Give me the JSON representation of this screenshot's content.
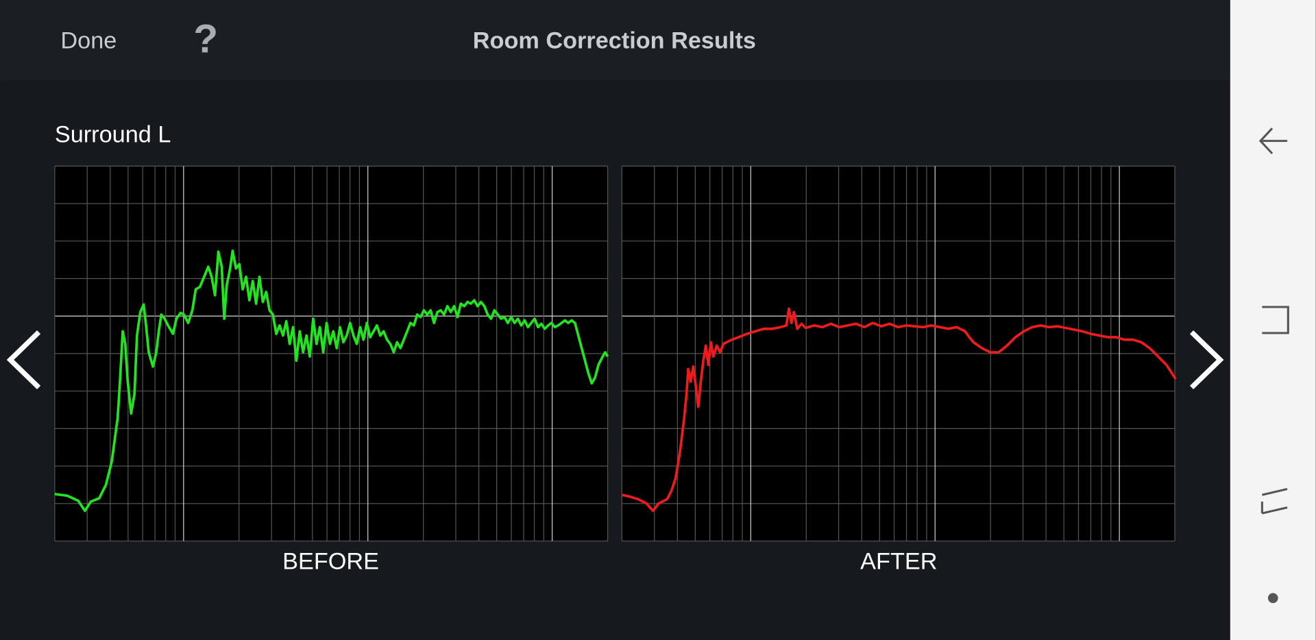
{
  "header": {
    "done": "Done",
    "help": "?",
    "title": "Room Correction Results"
  },
  "section": {
    "title": "Surround L"
  },
  "charts": [
    {
      "label": "BEFORE"
    },
    {
      "label": "AFTER"
    }
  ]
}
